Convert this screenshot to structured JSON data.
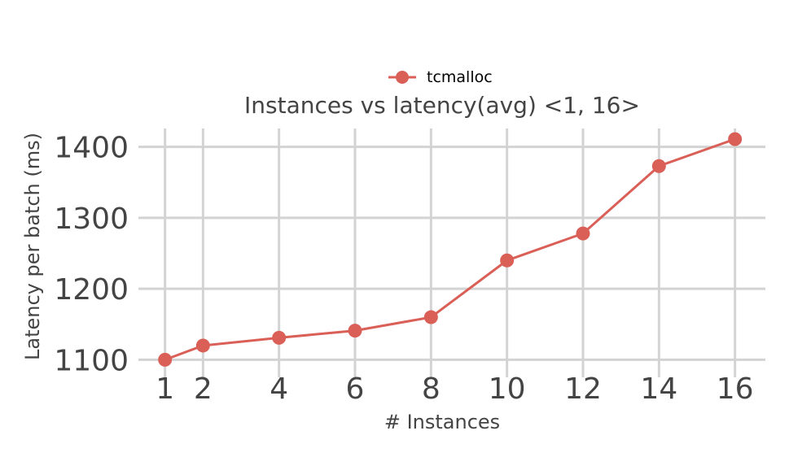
{
  "chart_data": {
    "type": "line",
    "title": "Instances vs latency(avg) <1, 16>",
    "xlabel": "# Instances",
    "ylabel": "Latency per batch (ms)",
    "x": [
      1,
      2,
      4,
      6,
      8,
      10,
      12,
      14,
      16
    ],
    "xticks": [
      "1",
      "2",
      "4",
      "6",
      "8",
      "10",
      "12",
      "14",
      "16"
    ],
    "yticks": [
      "1100",
      "1200",
      "1300",
      "1400"
    ],
    "xlim": [
      0.3,
      16.8
    ],
    "ylim": [
      1089,
      1426
    ],
    "grid": true,
    "legend_position": "top-center",
    "series": [
      {
        "name": "tcmalloc",
        "color": "#d95f57",
        "values": [
          1100,
          1120,
          1131,
          1141,
          1160,
          1240,
          1278,
          1373,
          1411
        ]
      }
    ]
  }
}
